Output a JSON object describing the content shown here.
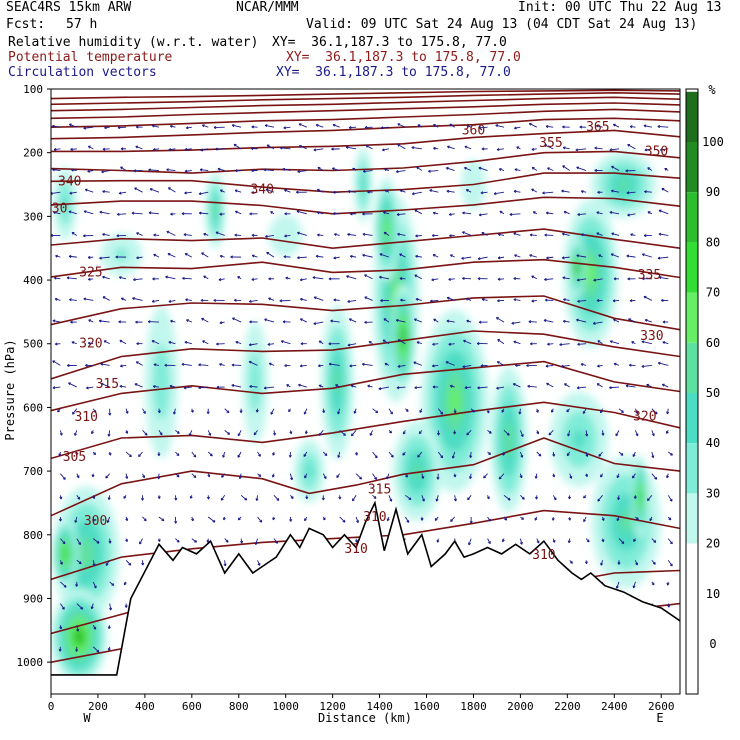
{
  "header": {
    "model": "SEAC4RS 15km ARW",
    "org": "NCAR/MMM",
    "init": "Init: 00 UTC Thu 22 Aug 13",
    "fcst_label": "Fcst:",
    "fcst_value": "57 h",
    "valid": "Valid: 09 UTC Sat 24 Aug 13 (04 CDT Sat 24 Aug 13)"
  },
  "fields": [
    {
      "name": "Relative humidity (w.r.t. water)",
      "xy": "XY=  36.1,187.3 to 175.8, 77.0",
      "color": "#000000"
    },
    {
      "name": "Potential temperature",
      "xy": "XY=  36.1,187.3 to 175.8, 77.0",
      "color": "#8b1a1a"
    },
    {
      "name": "Circulation vectors",
      "xy": "XY=  36.1,187.3 to 175.8, 77.0",
      "color": "#1a1a8b"
    }
  ],
  "colorbar": {
    "unit": "%",
    "ticks": [
      "100",
      "90",
      "80",
      "70",
      "60",
      "50",
      "40",
      "30",
      "20",
      "10",
      "0"
    ],
    "colors": [
      "#1e7a1e",
      "#2e9a2e",
      "#2ebd2e",
      "#33dd33",
      "#66ee66",
      "#5ee0a0",
      "#4ddcc4",
      "#7fecd8",
      "#c2f7ee"
    ]
  },
  "chart_data": {
    "type": "cross-section",
    "xlabel": "Distance (km)",
    "ylabel": "Pressure (hPa)",
    "xlim": [
      0,
      2680
    ],
    "ylim": [
      1050,
      100
    ],
    "x_ticks": [
      "0",
      "200",
      "400",
      "600",
      "800",
      "1000",
      "1200",
      "1400",
      "1600",
      "1800",
      "2000",
      "2200",
      "2400",
      "2600"
    ],
    "y_ticks": [
      "100",
      "200",
      "300",
      "400",
      "500",
      "600",
      "700",
      "800",
      "900",
      "1000"
    ],
    "west_label": "W",
    "east_label": "E",
    "theta_labels": [
      {
        "text": "360",
        "x": 1800,
        "p": 165
      },
      {
        "text": "355",
        "x": 2130,
        "p": 185
      },
      {
        "text": "365",
        "x": 2330,
        "p": 160
      },
      {
        "text": "350",
        "x": 2580,
        "p": 198
      },
      {
        "text": "340",
        "x": 80,
        "p": 245
      },
      {
        "text": "340",
        "x": 900,
        "p": 258
      },
      {
        "text": "330",
        "x": 20,
        "p": 288
      },
      {
        "text": "325",
        "x": 170,
        "p": 388
      },
      {
        "text": "335",
        "x": 2550,
        "p": 392
      },
      {
        "text": "320",
        "x": 170,
        "p": 500
      },
      {
        "text": "330",
        "x": 2560,
        "p": 488
      },
      {
        "text": "315",
        "x": 240,
        "p": 563
      },
      {
        "text": "310",
        "x": 150,
        "p": 615
      },
      {
        "text": "320",
        "x": 2530,
        "p": 614
      },
      {
        "text": "305",
        "x": 100,
        "p": 678
      },
      {
        "text": "315",
        "x": 1400,
        "p": 729
      },
      {
        "text": "300",
        "x": 190,
        "p": 778
      },
      {
        "text": "310",
        "x": 1380,
        "p": 772
      },
      {
        "text": "310",
        "x": 1300,
        "p": 822
      },
      {
        "text": "310",
        "x": 2100,
        "p": 832
      }
    ],
    "terrain_p": [
      [
        0,
        1020
      ],
      [
        280,
        1020
      ],
      [
        340,
        900
      ],
      [
        460,
        815
      ],
      [
        520,
        840
      ],
      [
        560,
        820
      ],
      [
        620,
        830
      ],
      [
        680,
        810
      ],
      [
        740,
        860
      ],
      [
        800,
        830
      ],
      [
        860,
        860
      ],
      [
        920,
        845
      ],
      [
        960,
        835
      ],
      [
        1020,
        800
      ],
      [
        1060,
        820
      ],
      [
        1100,
        790
      ],
      [
        1160,
        800
      ],
      [
        1200,
        820
      ],
      [
        1250,
        800
      ],
      [
        1300,
        820
      ],
      [
        1340,
        780
      ],
      [
        1380,
        750
      ],
      [
        1420,
        825
      ],
      [
        1470,
        760
      ],
      [
        1520,
        830
      ],
      [
        1580,
        800
      ],
      [
        1620,
        850
      ],
      [
        1680,
        830
      ],
      [
        1720,
        810
      ],
      [
        1760,
        835
      ],
      [
        1800,
        830
      ],
      [
        1860,
        820
      ],
      [
        1920,
        830
      ],
      [
        1980,
        815
      ],
      [
        2040,
        830
      ],
      [
        2100,
        810
      ],
      [
        2160,
        840
      ],
      [
        2220,
        860
      ],
      [
        2260,
        870
      ],
      [
        2300,
        860
      ],
      [
        2360,
        880
      ],
      [
        2440,
        890
      ],
      [
        2520,
        905
      ],
      [
        2600,
        915
      ],
      [
        2680,
        935
      ]
    ],
    "theta_lines": [
      [
        [
          0,
          1000
        ],
        [
          400,
          972
        ],
        [
          800,
          958
        ],
        [
          1200,
          952
        ],
        [
          1600,
          948
        ],
        [
          2000,
          942
        ],
        [
          2400,
          920
        ],
        [
          2680,
          908
        ]
      ],
      [
        [
          0,
          955
        ],
        [
          400,
          915
        ],
        [
          800,
          905
        ],
        [
          1200,
          898
        ],
        [
          1600,
          893
        ],
        [
          2000,
          887
        ],
        [
          2400,
          860
        ],
        [
          2680,
          856
        ]
      ],
      [
        [
          0,
          870
        ],
        [
          300,
          835
        ],
        [
          600,
          822
        ],
        [
          900,
          812
        ],
        [
          1200,
          806
        ],
        [
          1500,
          800
        ],
        [
          1800,
          782
        ],
        [
          2100,
          762
        ],
        [
          2400,
          770
        ],
        [
          2680,
          790
        ]
      ],
      [
        [
          0,
          770
        ],
        [
          300,
          720
        ],
        [
          600,
          700
        ],
        [
          900,
          712
        ],
        [
          1100,
          735
        ],
        [
          1300,
          722
        ],
        [
          1500,
          705
        ],
        [
          1800,
          690
        ],
        [
          2100,
          648
        ],
        [
          2400,
          688
        ],
        [
          2680,
          700
        ]
      ],
      [
        [
          0,
          680
        ],
        [
          300,
          648
        ],
        [
          600,
          644
        ],
        [
          900,
          655
        ],
        [
          1200,
          640
        ],
        [
          1500,
          622
        ],
        [
          1800,
          606
        ],
        [
          2100,
          592
        ],
        [
          2400,
          608
        ],
        [
          2680,
          632
        ]
      ],
      [
        [
          0,
          605
        ],
        [
          300,
          578
        ],
        [
          600,
          566
        ],
        [
          900,
          578
        ],
        [
          1200,
          570
        ],
        [
          1500,
          548
        ],
        [
          1800,
          538
        ],
        [
          2100,
          528
        ],
        [
          2400,
          560
        ],
        [
          2680,
          575
        ]
      ],
      [
        [
          0,
          555
        ],
        [
          300,
          520
        ],
        [
          600,
          508
        ],
        [
          900,
          512
        ],
        [
          1200,
          510
        ],
        [
          1500,
          495
        ],
        [
          1800,
          480
        ],
        [
          2100,
          485
        ],
        [
          2400,
          505
        ],
        [
          2680,
          520
        ]
      ],
      [
        [
          0,
          470
        ],
        [
          300,
          445
        ],
        [
          600,
          436
        ],
        [
          900,
          438
        ],
        [
          1200,
          448
        ],
        [
          1500,
          440
        ],
        [
          1800,
          428
        ],
        [
          2100,
          425
        ],
        [
          2400,
          460
        ],
        [
          2680,
          478
        ]
      ],
      [
        [
          0,
          395
        ],
        [
          300,
          380
        ],
        [
          600,
          382
        ],
        [
          900,
          372
        ],
        [
          1200,
          388
        ],
        [
          1500,
          384
        ],
        [
          1800,
          372
        ],
        [
          2100,
          368
        ],
        [
          2400,
          380
        ],
        [
          2680,
          396
        ]
      ],
      [
        [
          0,
          345
        ],
        [
          300,
          335
        ],
        [
          600,
          338
        ],
        [
          900,
          334
        ],
        [
          1200,
          350
        ],
        [
          1500,
          340
        ],
        [
          1800,
          330
        ],
        [
          2100,
          320
        ],
        [
          2400,
          336
        ],
        [
          2680,
          350
        ]
      ],
      [
        [
          0,
          282
        ],
        [
          300,
          276
        ],
        [
          600,
          276
        ],
        [
          900,
          283
        ],
        [
          1200,
          296
        ],
        [
          1500,
          290
        ],
        [
          1800,
          282
        ],
        [
          2100,
          270
        ],
        [
          2400,
          272
        ],
        [
          2680,
          284
        ]
      ],
      [
        [
          0,
          245
        ],
        [
          300,
          244
        ],
        [
          600,
          244
        ],
        [
          900,
          254
        ],
        [
          1200,
          262
        ],
        [
          1500,
          258
        ],
        [
          1800,
          250
        ],
        [
          2100,
          232
        ],
        [
          2400,
          232
        ],
        [
          2680,
          240
        ]
      ],
      [
        [
          0,
          225
        ],
        [
          300,
          228
        ],
        [
          600,
          232
        ],
        [
          900,
          226
        ],
        [
          1200,
          228
        ],
        [
          1500,
          224
        ],
        [
          1800,
          214
        ],
        [
          2100,
          200
        ],
        [
          2400,
          198
        ],
        [
          2680,
          208
        ]
      ],
      [
        [
          0,
          198
        ],
        [
          300,
          198
        ],
        [
          600,
          196
        ],
        [
          900,
          192
        ],
        [
          1200,
          190
        ],
        [
          1500,
          186
        ],
        [
          1800,
          176
        ],
        [
          2100,
          170
        ],
        [
          2400,
          165
        ],
        [
          2680,
          175
        ]
      ],
      [
        [
          0,
          178
        ],
        [
          300,
          176
        ],
        [
          600,
          172
        ],
        [
          900,
          168
        ],
        [
          1200,
          165
        ],
        [
          1500,
          160
        ],
        [
          1800,
          156
        ],
        [
          2100,
          148
        ],
        [
          2400,
          146
        ],
        [
          2680,
          150
        ]
      ],
      [
        [
          0,
          160
        ],
        [
          300,
          158
        ],
        [
          600,
          154
        ],
        [
          900,
          150
        ],
        [
          1200,
          148
        ],
        [
          1500,
          144
        ],
        [
          1800,
          140
        ],
        [
          2100,
          135
        ],
        [
          2400,
          132
        ],
        [
          2680,
          136
        ]
      ],
      [
        [
          0,
          146
        ],
        [
          300,
          144
        ],
        [
          600,
          140
        ],
        [
          900,
          137
        ],
        [
          1200,
          134
        ],
        [
          1500,
          131
        ],
        [
          1800,
          128
        ],
        [
          2100,
          124
        ],
        [
          2400,
          122
        ],
        [
          2680,
          125
        ]
      ],
      [
        [
          0,
          134
        ],
        [
          300,
          132
        ],
        [
          600,
          129
        ],
        [
          900,
          126
        ],
        [
          1200,
          124
        ],
        [
          1500,
          121
        ],
        [
          1800,
          118
        ],
        [
          2100,
          115
        ],
        [
          2400,
          113
        ],
        [
          2680,
          116
        ]
      ],
      [
        [
          0,
          124
        ],
        [
          300,
          122
        ],
        [
          600,
          120
        ],
        [
          900,
          117
        ],
        [
          1200,
          115
        ],
        [
          1500,
          113
        ],
        [
          1800,
          110
        ],
        [
          2100,
          108
        ],
        [
          2400,
          106
        ],
        [
          2680,
          108
        ]
      ],
      [
        [
          0,
          115
        ],
        [
          300,
          113
        ],
        [
          600,
          112
        ],
        [
          900,
          110
        ],
        [
          1200,
          108
        ],
        [
          1500,
          106
        ],
        [
          1800,
          104
        ],
        [
          2100,
          103
        ],
        [
          2400,
          102
        ],
        [
          2680,
          103
        ]
      ]
    ],
    "rh_blobs": [
      {
        "x": 60,
        "p": 280,
        "rx": 60,
        "rp": 70,
        "v": 50
      },
      {
        "x": 300,
        "p": 360,
        "rx": 120,
        "rp": 45,
        "v": 40
      },
      {
        "x": 700,
        "p": 290,
        "rx": 50,
        "rp": 70,
        "v": 60
      },
      {
        "x": 1330,
        "p": 250,
        "rx": 45,
        "rp": 70,
        "v": 55
      },
      {
        "x": 1470,
        "p": 430,
        "rx": 110,
        "rp": 180,
        "v": 70
      },
      {
        "x": 1500,
        "p": 490,
        "rx": 55,
        "rp": 90,
        "v": 95
      },
      {
        "x": 1430,
        "p": 320,
        "rx": 60,
        "rp": 90,
        "v": 75
      },
      {
        "x": 1720,
        "p": 590,
        "rx": 160,
        "rp": 160,
        "v": 70
      },
      {
        "x": 1560,
        "p": 700,
        "rx": 120,
        "rp": 90,
        "v": 60
      },
      {
        "x": 1950,
        "p": 650,
        "rx": 90,
        "rp": 130,
        "v": 65
      },
      {
        "x": 2300,
        "p": 390,
        "rx": 130,
        "rp": 130,
        "v": 70
      },
      {
        "x": 2240,
        "p": 380,
        "rx": 40,
        "rp": 50,
        "v": 90
      },
      {
        "x": 2440,
        "p": 250,
        "rx": 160,
        "rp": 60,
        "v": 60
      },
      {
        "x": 2250,
        "p": 650,
        "rx": 150,
        "rp": 90,
        "v": 50
      },
      {
        "x": 2450,
        "p": 780,
        "rx": 170,
        "rp": 120,
        "v": 60
      },
      {
        "x": 2510,
        "p": 740,
        "rx": 40,
        "rp": 70,
        "v": 85
      },
      {
        "x": 150,
        "p": 830,
        "rx": 160,
        "rp": 120,
        "v": 65
      },
      {
        "x": 120,
        "p": 960,
        "rx": 130,
        "rp": 80,
        "v": 90
      },
      {
        "x": 60,
        "p": 830,
        "rx": 60,
        "rp": 60,
        "v": 88
      },
      {
        "x": 470,
        "p": 560,
        "rx": 90,
        "rp": 150,
        "v": 45
      },
      {
        "x": 870,
        "p": 560,
        "rx": 70,
        "rp": 120,
        "v": 45
      },
      {
        "x": 1100,
        "p": 700,
        "rx": 80,
        "rp": 60,
        "v": 50
      },
      {
        "x": 1220,
        "p": 560,
        "rx": 80,
        "rp": 140,
        "v": 60
      },
      {
        "x": 1800,
        "p": 250,
        "rx": 80,
        "rp": 60,
        "v": 35
      },
      {
        "x": 1000,
        "p": 330,
        "rx": 110,
        "rp": 50,
        "v": 35
      }
    ]
  }
}
